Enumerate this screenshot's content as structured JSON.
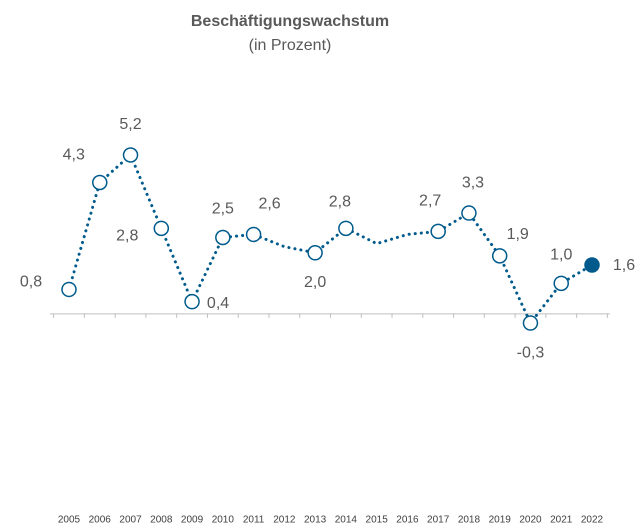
{
  "chart_data": {
    "type": "line",
    "title": "Beschäftigungswachstum",
    "subtitle": "(in Prozent)",
    "categories": [
      "2005",
      "2006",
      "2007",
      "2008",
      "2009",
      "2010",
      "2011",
      "2012",
      "2013",
      "2014",
      "2015",
      "2016",
      "2017",
      "2018",
      "2019",
      "2020",
      "2021",
      "2022"
    ],
    "series": [
      {
        "color": "#005b8c",
        "values": [
          0.8,
          4.3,
          5.2,
          2.8,
          0.4,
          2.5,
          2.6,
          2.2,
          2.0,
          2.8,
          2.3,
          2.6,
          2.7,
          3.3,
          1.9,
          -0.3,
          1.0,
          1.6
        ],
        "value_labels": [
          "0,8",
          "4,3",
          "5,2",
          "2,8",
          "0,4",
          "2,5",
          "2,6",
          null,
          "2,0",
          "2,8",
          null,
          null,
          "2,7",
          "3,3",
          "1,9",
          "-0,3",
          "1,0",
          "1,6"
        ]
      }
    ],
    "ylim": [
      -2,
      7
    ],
    "grid": false
  }
}
